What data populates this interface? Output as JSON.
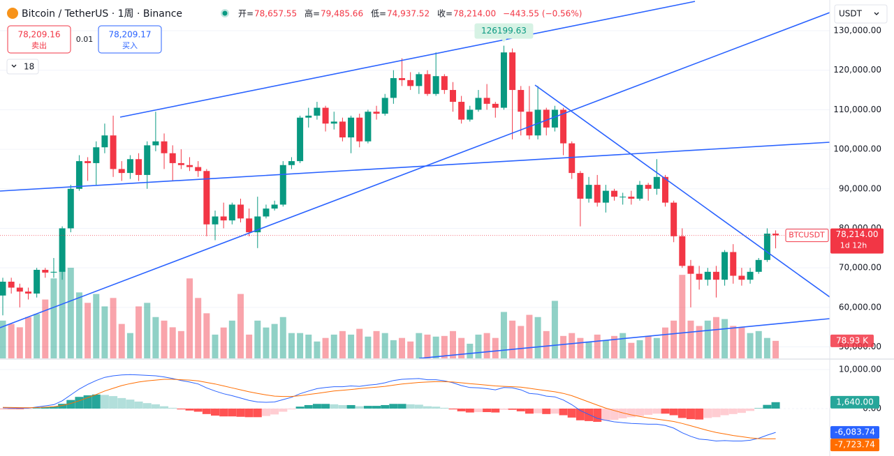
{
  "chart_data": {
    "type": "candlestick",
    "header": {
      "symbol": "Bitcoin / TetherUS · 1周 · Binance",
      "open_label": "开=",
      "open": "78,657.55",
      "high_label": "高=",
      "high": "79,485.66",
      "low_label": "低=",
      "low": "74,937.52",
      "close_label": "收=",
      "close": "78,214.00",
      "change": "−443.55 (−0.56%)"
    },
    "trade": {
      "sell_price": "78,209.16",
      "sell_label": "卖出",
      "spread": "0.01",
      "buy_price": "78,209.17",
      "buy_label": "买入"
    },
    "interval_count": "18",
    "currency": "USDT",
    "symbol_tag": "BTCUSDT",
    "last_price_label": "78,214.00",
    "countdown": "1d 12h",
    "high_marker_label": "126199.63",
    "ylim": [
      47100,
      137760
    ],
    "yticks": [
      {
        "value": 50000,
        "label": "50,000.00"
      },
      {
        "value": 60000,
        "label": "60,000.00"
      },
      {
        "value": 70000,
        "label": "70,000.00"
      },
      {
        "value": 80000,
        "label": "80,000.00"
      },
      {
        "value": 90000,
        "label": "90,000.00"
      },
      {
        "value": 100000,
        "label": "100,000.00"
      },
      {
        "value": 110000,
        "label": "110,000.00"
      },
      {
        "value": 120000,
        "label": "120,000.00"
      },
      {
        "value": 130000,
        "label": "130,000.00"
      }
    ],
    "grid": true,
    "up_color": "#089981",
    "down_color": "#f23645",
    "open": [
      63000,
      66500,
      65000,
      64000,
      63500,
      69500,
      68800,
      69000,
      80000,
      90000,
      97000,
      96500,
      100500,
      103500,
      95000,
      94000,
      97500,
      93500,
      101000,
      102000,
      99000,
      96500,
      96000,
      95500,
      94500,
      81000,
      83000,
      82000,
      86000,
      82500,
      79000,
      83000,
      85000,
      86000,
      96000,
      97000,
      108000,
      108500,
      110500,
      106500,
      107000,
      103000,
      108000,
      102000,
      109500,
      109000,
      113000,
      118000,
      117500,
      116000,
      119000,
      114000,
      118500,
      115000,
      112000,
      107500,
      110000,
      113000,
      111500,
      110500,
      124500,
      115000,
      109500,
      103500,
      110000,
      105500,
      110000,
      101500,
      94000,
      87500,
      91000,
      86500,
      89500,
      88000,
      88000,
      87500,
      91000,
      90000,
      93000,
      86500,
      78000,
      70500,
      68500,
      67000,
      69000,
      67000,
      74000,
      68000,
      67000,
      69000,
      72000,
      78657.55
    ],
    "high": [
      67500,
      67500,
      66000,
      65000,
      70000,
      70000,
      72500,
      80500,
      91000,
      98500,
      98000,
      102000,
      106500,
      108500,
      97000,
      98500,
      99000,
      102000,
      109500,
      104000,
      101000,
      100000,
      98000,
      97000,
      95000,
      84500,
      86500,
      86500,
      87500,
      85000,
      88000,
      86000,
      87000,
      97000,
      98000,
      108500,
      110500,
      112000,
      111000,
      109500,
      108000,
      108500,
      109000,
      110000,
      111000,
      114000,
      120000,
      123000,
      119500,
      119500,
      120000,
      124500,
      119000,
      117000,
      113500,
      111000,
      115000,
      116500,
      112000,
      126199.63,
      125500,
      116000,
      116000,
      116000,
      110500,
      111000,
      110500,
      102000,
      94500,
      93000,
      93500,
      91000,
      90000,
      89000,
      89500,
      92000,
      91500,
      97500,
      93500,
      87000,
      80000,
      72000,
      70500,
      70000,
      70500,
      74500,
      76000,
      70000,
      70000,
      72500,
      80000,
      79485.66
    ],
    "low": [
      58000,
      63500,
      60000,
      62000,
      62500,
      67500,
      67500,
      67000,
      79000,
      89500,
      92000,
      91000,
      99000,
      93000,
      92000,
      92500,
      92000,
      90000,
      99500,
      95000,
      92000,
      95000,
      94500,
      93000,
      78000,
      77000,
      80000,
      81000,
      81500,
      78000,
      75000,
      82500,
      84500,
      85500,
      95000,
      96500,
      105500,
      107500,
      104500,
      105000,
      102000,
      99000,
      100500,
      101500,
      107500,
      108500,
      111500,
      116000,
      115000,
      114000,
      113500,
      113500,
      114000,
      109500,
      106500,
      107000,
      109500,
      110000,
      108000,
      110000,
      102500,
      103500,
      102500,
      102500,
      103500,
      104500,
      98500,
      92500,
      80500,
      86500,
      85500,
      84000,
      87000,
      86000,
      86000,
      87000,
      87000,
      88500,
      85500,
      76500,
      70000,
      60000,
      64500,
      65500,
      62500,
      65500,
      66000,
      65500,
      66000,
      68500,
      71500,
      74937.52
    ],
    "close": [
      66500,
      65000,
      64000,
      63500,
      69500,
      68800,
      69000,
      80000,
      90000,
      97000,
      96500,
      100500,
      103500,
      95000,
      94000,
      97500,
      93500,
      101000,
      102000,
      99000,
      96500,
      96000,
      95500,
      94500,
      81000,
      83000,
      82000,
      86000,
      82500,
      79000,
      83000,
      85000,
      86000,
      96000,
      97000,
      108000,
      108500,
      110500,
      106500,
      107000,
      103000,
      108000,
      102000,
      109500,
      109000,
      113000,
      118000,
      117500,
      116000,
      119000,
      114000,
      118500,
      115000,
      112000,
      107500,
      110000,
      113000,
      111500,
      110500,
      124500,
      115000,
      109500,
      103500,
      110000,
      105500,
      110000,
      101500,
      94000,
      87500,
      91000,
      86500,
      89500,
      88000,
      88000,
      87500,
      91000,
      90000,
      93000,
      86500,
      78000,
      70500,
      68500,
      67000,
      69000,
      67000,
      74000,
      68000,
      67000,
      69000,
      72000,
      78657.55,
      78214
    ],
    "volume": {
      "values": [
        170,
        155,
        140,
        186,
        200,
        265,
        360,
        400,
        408,
        297,
        250,
        290,
        234,
        272,
        155,
        114,
        234,
        250,
        186,
        170,
        140,
        123,
        360,
        272,
        203,
        107,
        139,
        170,
        290,
        107,
        170,
        139,
        155,
        186,
        114,
        114,
        107,
        76,
        92,
        107,
        123,
        107,
        133,
        98,
        123,
        114,
        82,
        92,
        76,
        114,
        107,
        98,
        101,
        123,
        92,
        66,
        107,
        114,
        92,
        209,
        170,
        146,
        196,
        186,
        123,
        259,
        101,
        114,
        92,
        76,
        107,
        82,
        101,
        114,
        70,
        82,
        101,
        92,
        139,
        170,
        376,
        170,
        146,
        170,
        186,
        177,
        146,
        139,
        114,
        123,
        92,
        78.93
      ],
      "last_label": "78.93 K"
    },
    "macd": {
      "ylim": [
        -11786,
        12500
      ],
      "yticks": [
        {
          "value": 10000,
          "label": "10,000.00"
        },
        {
          "value": 0,
          "label": "0.00"
        }
      ],
      "histogram": [
        -100,
        -130,
        -150,
        -130,
        140,
        350,
        520,
        1220,
        2200,
        3000,
        3400,
        3600,
        3500,
        3200,
        2700,
        2300,
        1800,
        1400,
        1100,
        600,
        200,
        -200,
        -500,
        -800,
        -1400,
        -1800,
        -2000,
        -2000,
        -2100,
        -2200,
        -2200,
        -1900,
        -1500,
        -800,
        -200,
        500,
        900,
        1200,
        1200,
        1100,
        900,
        900,
        600,
        700,
        700,
        900,
        1200,
        1200,
        1100,
        1000,
        600,
        500,
        200,
        -200,
        -700,
        -1000,
        -900,
        -900,
        -1000,
        -300,
        -300,
        -700,
        -1300,
        -1200,
        -1400,
        -1300,
        -1700,
        -2300,
        -3000,
        -3200,
        -3400,
        -3100,
        -2900,
        -2500,
        -2200,
        -1900,
        -1600,
        -1300,
        -1300,
        -1700,
        -2400,
        -2700,
        -2800,
        -2400,
        -2200,
        -1700,
        -1400,
        -1100,
        -600,
        100,
        950,
        1640
      ],
      "dif": [
        200,
        150,
        100,
        100,
        400,
        700,
        1000,
        2000,
        3500,
        5000,
        6200,
        7200,
        8000,
        8400,
        8600,
        8700,
        8600,
        8500,
        8400,
        8100,
        7700,
        7200,
        6800,
        6300,
        5300,
        4500,
        3800,
        3300,
        2700,
        2100,
        1700,
        1600,
        1700,
        2300,
        2900,
        3800,
        4500,
        5100,
        5400,
        5600,
        5600,
        5800,
        5700,
        6000,
        6200,
        6600,
        7200,
        7500,
        7600,
        7700,
        7400,
        7400,
        7100,
        6600,
        5900,
        5400,
        5300,
        5100,
        4800,
        5400,
        5300,
        4800,
        3900,
        3700,
        3200,
        3000,
        2200,
        1000,
        -500,
        -1500,
        -2500,
        -3000,
        -3400,
        -3600,
        -3800,
        -3900,
        -4000,
        -4000,
        -4300,
        -5000,
        -6200,
        -7100,
        -7800,
        -8000,
        -8300,
        -8200,
        -8300,
        -8300,
        -8100,
        -7600,
        -6800,
        -6083.74
      ],
      "dea": [
        300,
        280,
        250,
        230,
        260,
        350,
        480,
        780,
        1300,
        2000,
        2800,
        3600,
        4500,
        5200,
        5900,
        6400,
        6800,
        7100,
        7300,
        7500,
        7500,
        7400,
        7300,
        7100,
        6700,
        6300,
        5800,
        5300,
        4800,
        4300,
        3900,
        3500,
        3200,
        3100,
        3100,
        3300,
        3600,
        3900,
        4200,
        4500,
        4700,
        4900,
        5100,
        5300,
        5500,
        5700,
        6000,
        6300,
        6500,
        6700,
        6800,
        6900,
        6900,
        6800,
        6600,
        6400,
        6200,
        6000,
        5800,
        5700,
        5600,
        5500,
        5200,
        4900,
        4600,
        4300,
        3900,
        3300,
        2500,
        1700,
        900,
        100,
        -500,
        -1100,
        -1600,
        -2000,
        -2400,
        -2700,
        -3000,
        -3300,
        -3800,
        -4400,
        -5000,
        -5600,
        -6100,
        -6500,
        -6900,
        -7200,
        -7500,
        -7700,
        -7750,
        -7723.74
      ],
      "hist_label": "1,640.00",
      "dif_label": "-6,083.74",
      "dea_label": "-7,723.74",
      "dif_color": "#2962ff",
      "dea_color": "#ff6d00"
    }
  }
}
